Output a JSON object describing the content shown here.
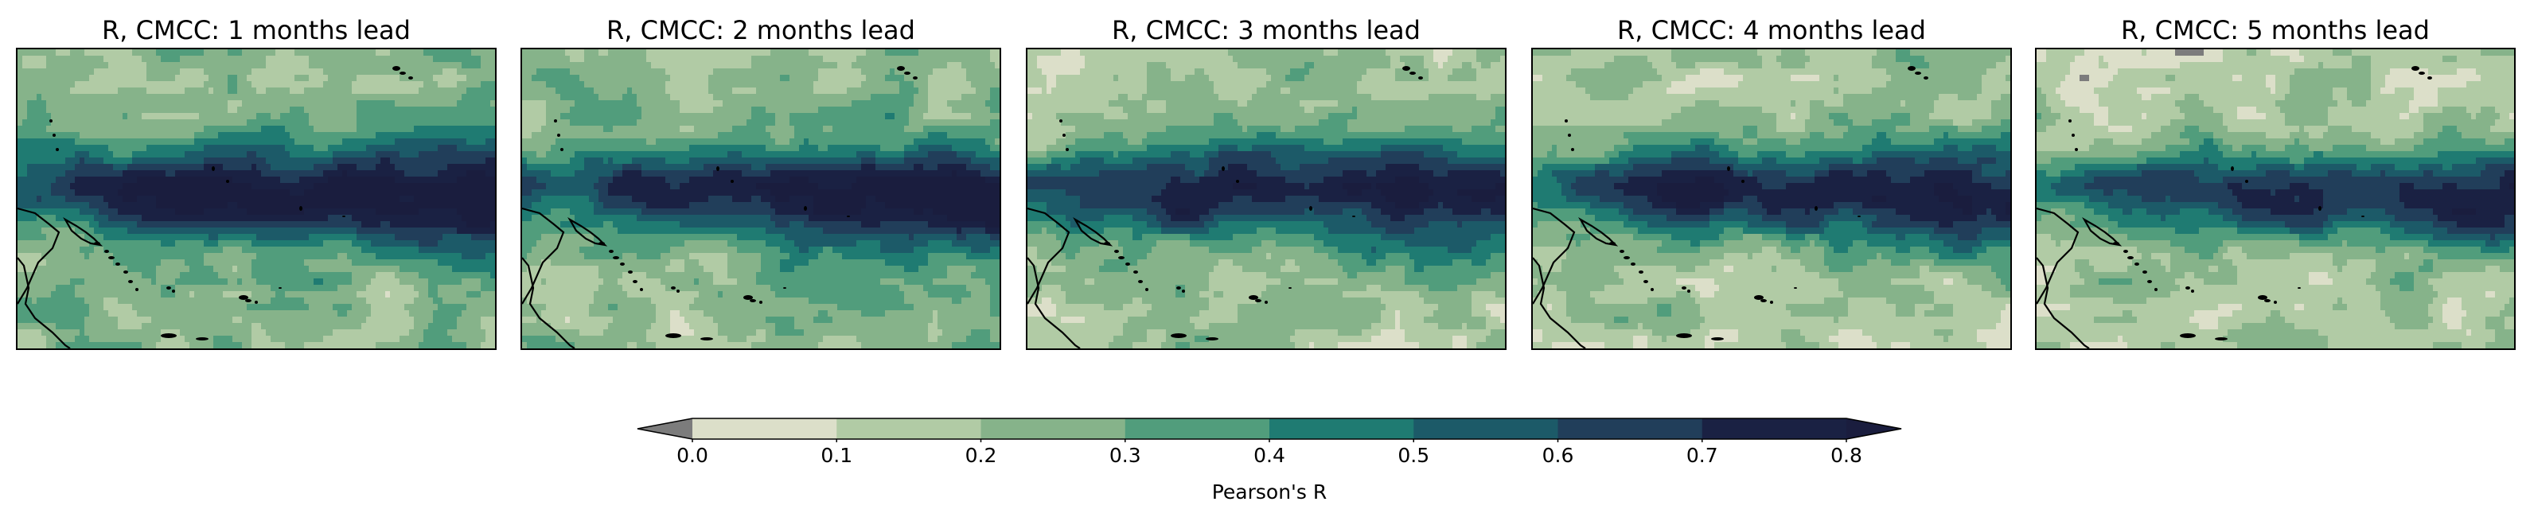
{
  "panels": [
    {
      "title": "R, CMCC: 1 months lead",
      "lead": 1
    },
    {
      "title": "R, CMCC: 2 months lead",
      "lead": 2
    },
    {
      "title": "R, CMCC: 3 months lead",
      "lead": 3
    },
    {
      "title": "R, CMCC: 4 months lead",
      "lead": 4
    },
    {
      "title": "R, CMCC: 5 months lead",
      "lead": 5
    }
  ],
  "colorbar": {
    "label": "Pearson's R",
    "ticks": [
      "0.0",
      "0.1",
      "0.2",
      "0.3",
      "0.4",
      "0.5",
      "0.6",
      "0.7",
      "0.8"
    ],
    "levels": [
      0.0,
      0.1,
      0.2,
      0.3,
      0.4,
      0.5,
      0.6,
      0.7,
      0.8
    ],
    "colors": [
      "#dcdfc9",
      "#b1cba5",
      "#86b38a",
      "#519d7c",
      "#1f7b72",
      "#1c5a68",
      "#213e5a",
      "#1a2143"
    ],
    "under_color": "#7c7c7c",
    "over_color": "#1a1d3e",
    "extend": "both"
  },
  "chart_data": {
    "type": "heatmap",
    "title": "",
    "subplots": [
      "R, CMCC: 1 months lead",
      "R, CMCC: 2 months lead",
      "R, CMCC: 3 months lead",
      "R, CMCC: 4 months lead",
      "R, CMCC: 5 months lead"
    ],
    "variable": "Pearson's R",
    "colorbar_range": [
      0.0,
      0.8
    ],
    "equatorial_core_max_r": [
      0.8,
      0.8,
      0.7,
      0.7,
      0.7
    ],
    "peripheral_r": [
      0.2,
      0.2,
      0.1,
      0.1,
      0.1
    ],
    "grid": false
  }
}
